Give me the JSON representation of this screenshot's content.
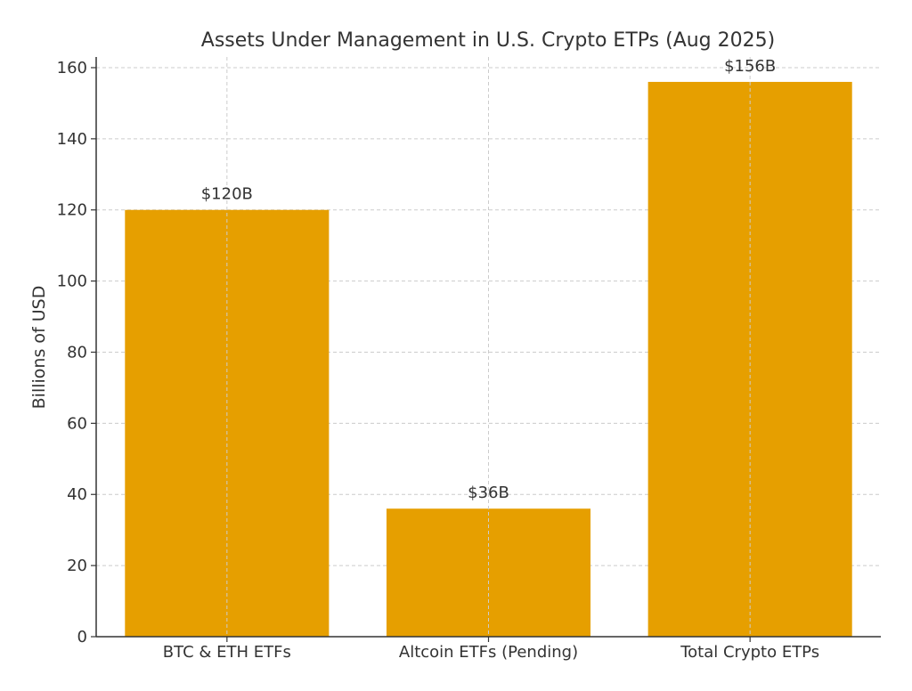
{
  "chart_data": {
    "type": "bar",
    "title": "Assets Under Management in U.S. Crypto ETPs (Aug 2025)",
    "xlabel": "",
    "ylabel": "Billions of USD",
    "categories": [
      "BTC & ETH ETFs",
      "Altcoin ETFs (Pending)",
      "Total Crypto ETPs"
    ],
    "values": [
      120,
      36,
      156
    ],
    "data_labels": [
      "$120B",
      "$36B",
      "$156B"
    ],
    "ylim": [
      0,
      163
    ],
    "yticks": [
      0,
      20,
      40,
      60,
      80,
      100,
      120,
      140,
      160
    ],
    "grid": true,
    "bar_color": "#E69F00"
  }
}
